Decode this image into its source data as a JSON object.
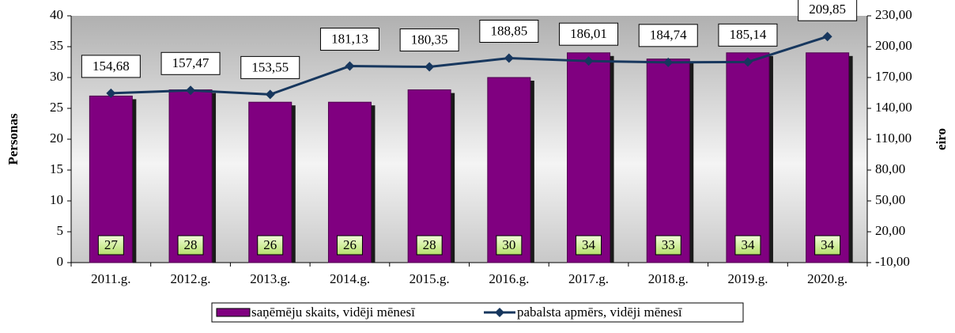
{
  "chart_data": {
    "type": "bar",
    "categories": [
      "2011.g.",
      "2012.g.",
      "2013.g.",
      "2014.g.",
      "2015.g.",
      "2016.g.",
      "2017.g.",
      "2018.g.",
      "2019.g.",
      "2020.g."
    ],
    "series": [
      {
        "name": "saņēmēju skaits, vidēji mēnesī",
        "type": "bar",
        "color": "#800080",
        "values": [
          27,
          28,
          26,
          26,
          28,
          30,
          34,
          33,
          34,
          34
        ]
      },
      {
        "name": "pabalsta apmērs, vidēji mēnesī",
        "type": "line",
        "axis": "y2",
        "color": "#17375e",
        "values": [
          154.68,
          157.47,
          153.55,
          181.13,
          180.35,
          188.85,
          186.01,
          184.74,
          185.14,
          209.85
        ],
        "value_labels": [
          "154,68",
          "157,47",
          "153,55",
          "181,13",
          "180,35",
          "188,85",
          "186,01",
          "184,74",
          "185,14",
          "209,85"
        ]
      }
    ],
    "ylabel": "Personas",
    "y2label": "eiro",
    "ylim": [
      0,
      40
    ],
    "yticks": [
      0,
      5,
      10,
      15,
      20,
      25,
      30,
      35,
      40
    ],
    "y2lim": [
      -10,
      230
    ],
    "y2ticks": [
      {
        "value": -10,
        "label": "-10,00"
      },
      {
        "value": 20,
        "label": "20,00"
      },
      {
        "value": 50,
        "label": "50,00"
      },
      {
        "value": 80,
        "label": "80,00"
      },
      {
        "value": 110,
        "label": "110,00"
      },
      {
        "value": 140,
        "label": "140,00"
      },
      {
        "value": 170,
        "label": "170,00"
      },
      {
        "value": 200,
        "label": "200,00"
      },
      {
        "value": 230,
        "label": "230,00"
      }
    ],
    "grid": false,
    "legend": "bottom"
  }
}
